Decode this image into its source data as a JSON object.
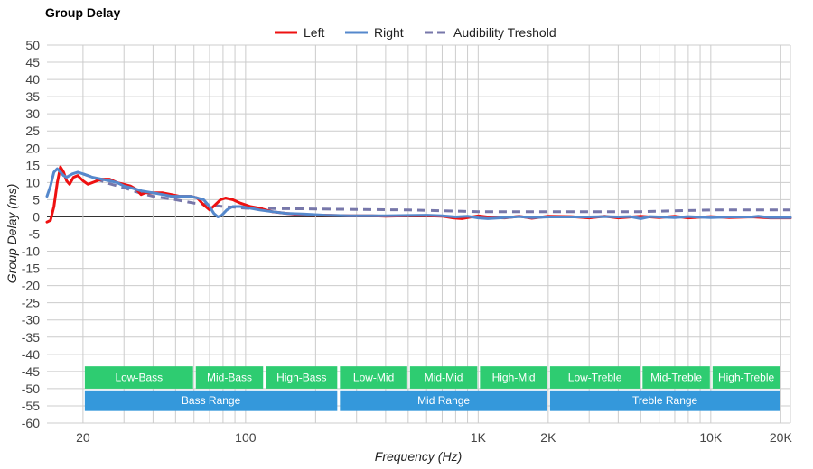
{
  "chart_data": {
    "type": "line",
    "title": "Group Delay",
    "xlabel": "Frequency (Hz)",
    "ylabel": "Group Delay (ms)",
    "xscale": "log",
    "xlim": [
      14,
      22000
    ],
    "ylim": [
      -60,
      50
    ],
    "yticks": [
      50,
      45,
      40,
      35,
      30,
      25,
      20,
      15,
      10,
      5,
      0,
      -5,
      -10,
      -15,
      -20,
      -25,
      -30,
      -35,
      -40,
      -45,
      -50,
      -55,
      -60
    ],
    "xticks": [
      {
        "value": 20,
        "label": "20"
      },
      {
        "value": 100,
        "label": "100"
      },
      {
        "value": 1000,
        "label": "1K"
      },
      {
        "value": 2000,
        "label": "2K"
      },
      {
        "value": 10000,
        "label": "10K"
      },
      {
        "value": 20000,
        "label": "20K"
      }
    ],
    "grid": true,
    "legend_position": "top-center",
    "series": [
      {
        "name": "Left",
        "color": "#ee1111",
        "style": "solid",
        "points": [
          [
            14,
            -1.5
          ],
          [
            14.5,
            -1
          ],
          [
            15,
            3
          ],
          [
            15.5,
            10
          ],
          [
            16,
            14.5
          ],
          [
            16.5,
            13
          ],
          [
            17,
            10.5
          ],
          [
            17.5,
            9.5
          ],
          [
            18.2,
            11.5
          ],
          [
            19,
            12
          ],
          [
            20,
            10.5
          ],
          [
            21,
            9.5
          ],
          [
            22,
            10
          ],
          [
            24,
            11
          ],
          [
            26,
            11
          ],
          [
            28,
            10
          ],
          [
            30,
            9.5
          ],
          [
            32,
            9
          ],
          [
            34,
            8
          ],
          [
            35.5,
            6.5
          ],
          [
            37,
            7
          ],
          [
            40,
            7
          ],
          [
            44,
            7
          ],
          [
            48,
            6.5
          ],
          [
            52,
            6
          ],
          [
            58,
            6
          ],
          [
            62,
            5.5
          ],
          [
            66,
            3.5
          ],
          [
            70,
            2
          ],
          [
            74,
            3.5
          ],
          [
            78,
            5
          ],
          [
            82,
            5.5
          ],
          [
            88,
            5
          ],
          [
            95,
            4
          ],
          [
            105,
            3
          ],
          [
            115,
            2.5
          ],
          [
            130,
            1.5
          ],
          [
            150,
            1
          ],
          [
            180,
            0.5
          ],
          [
            220,
            0.5
          ],
          [
            280,
            0.3
          ],
          [
            350,
            0.3
          ],
          [
            400,
            0.2
          ],
          [
            500,
            0.3
          ],
          [
            600,
            0.3
          ],
          [
            700,
            0.2
          ],
          [
            780,
            -0.3
          ],
          [
            850,
            -0.5
          ],
          [
            1000,
            0.3
          ],
          [
            1150,
            -0.2
          ],
          [
            1300,
            -0.3
          ],
          [
            1500,
            0.2
          ],
          [
            1700,
            -0.4
          ],
          [
            2000,
            0.2
          ],
          [
            2500,
            0.1
          ],
          [
            3000,
            -0.3
          ],
          [
            3500,
            0.2
          ],
          [
            4000,
            -0.3
          ],
          [
            5000,
            0.2
          ],
          [
            6000,
            -0.2
          ],
          [
            7000,
            0.2
          ],
          [
            8000,
            -0.3
          ],
          [
            10000,
            0.1
          ],
          [
            12000,
            -0.2
          ],
          [
            15000,
            0
          ],
          [
            18000,
            -0.3
          ],
          [
            20000,
            -0.3
          ],
          [
            22000,
            -0.3
          ]
        ]
      },
      {
        "name": "Right",
        "color": "#5588cc",
        "style": "solid",
        "points": [
          [
            14,
            6
          ],
          [
            14.5,
            9
          ],
          [
            15,
            13
          ],
          [
            15.5,
            14
          ],
          [
            16,
            13
          ],
          [
            16.5,
            12
          ],
          [
            17,
            11.5
          ],
          [
            18,
            12.5
          ],
          [
            19,
            13
          ],
          [
            20,
            12.5
          ],
          [
            22,
            11.5
          ],
          [
            24,
            11
          ],
          [
            26,
            10.5
          ],
          [
            28,
            10
          ],
          [
            30,
            9
          ],
          [
            32,
            8.5
          ],
          [
            34,
            8
          ],
          [
            36,
            7.5
          ],
          [
            40,
            7
          ],
          [
            44,
            6.5
          ],
          [
            48,
            6
          ],
          [
            52,
            6
          ],
          [
            58,
            6
          ],
          [
            62,
            5.5
          ],
          [
            66,
            5
          ],
          [
            70,
            3
          ],
          [
            73,
            1
          ],
          [
            76,
            0
          ],
          [
            79,
            0.5
          ],
          [
            83,
            2
          ],
          [
            88,
            3
          ],
          [
            95,
            3
          ],
          [
            105,
            2.5
          ],
          [
            115,
            2
          ],
          [
            130,
            1.5
          ],
          [
            150,
            1
          ],
          [
            180,
            0.8
          ],
          [
            220,
            0.5
          ],
          [
            280,
            0.3
          ],
          [
            350,
            0.3
          ],
          [
            400,
            0.3
          ],
          [
            500,
            0.4
          ],
          [
            600,
            0.5
          ],
          [
            700,
            0.3
          ],
          [
            800,
            0
          ],
          [
            900,
            0.2
          ],
          [
            1000,
            -0.3
          ],
          [
            1100,
            -0.5
          ],
          [
            1300,
            -0.2
          ],
          [
            1500,
            0.1
          ],
          [
            1700,
            -0.2
          ],
          [
            2000,
            0
          ],
          [
            2500,
            0
          ],
          [
            3000,
            0
          ],
          [
            3500,
            0.1
          ],
          [
            4000,
            0
          ],
          [
            4500,
            0.1
          ],
          [
            5000,
            -0.5
          ],
          [
            5500,
            0.1
          ],
          [
            6000,
            0
          ],
          [
            7000,
            -0.2
          ],
          [
            8000,
            0.1
          ],
          [
            9000,
            -0.1
          ],
          [
            10000,
            -0.2
          ],
          [
            12000,
            0
          ],
          [
            15000,
            0
          ],
          [
            16000,
            0.2
          ],
          [
            18000,
            -0.2
          ],
          [
            20000,
            -0.2
          ],
          [
            22000,
            -0.2
          ]
        ]
      },
      {
        "name": "Audibility Treshold",
        "color": "#7777aa",
        "style": "dashed",
        "points": [
          [
            20,
            12.5
          ],
          [
            22,
            11.5
          ],
          [
            25,
            10
          ],
          [
            30,
            8.5
          ],
          [
            35,
            7
          ],
          [
            40,
            6
          ],
          [
            50,
            5
          ],
          [
            60,
            4
          ],
          [
            70,
            3.5
          ],
          [
            80,
            3
          ],
          [
            90,
            2.8
          ],
          [
            100,
            2.5
          ],
          [
            200,
            2.3
          ],
          [
            500,
            2
          ],
          [
            1000,
            1.5
          ],
          [
            2000,
            1.5
          ],
          [
            5000,
            1.5
          ],
          [
            10000,
            2
          ],
          [
            20000,
            2
          ],
          [
            22000,
            2
          ]
        ]
      }
    ],
    "range_bands": [
      {
        "label": "Low-Bass",
        "from": 20,
        "to": 60,
        "row": 1,
        "color": "#2ecc71"
      },
      {
        "label": "Mid-Bass",
        "from": 60,
        "to": 120,
        "row": 1,
        "color": "#2ecc71"
      },
      {
        "label": "High-Bass",
        "from": 120,
        "to": 250,
        "row": 1,
        "color": "#2ecc71"
      },
      {
        "label": "Low-Mid",
        "from": 250,
        "to": 500,
        "row": 1,
        "color": "#2ecc71"
      },
      {
        "label": "Mid-Mid",
        "from": 500,
        "to": 1000,
        "row": 1,
        "color": "#2ecc71"
      },
      {
        "label": "High-Mid",
        "from": 1000,
        "to": 2000,
        "row": 1,
        "color": "#2ecc71"
      },
      {
        "label": "Low-Treble",
        "from": 2000,
        "to": 5000,
        "row": 1,
        "color": "#2ecc71"
      },
      {
        "label": "Mid-Treble",
        "from": 5000,
        "to": 10000,
        "row": 1,
        "color": "#2ecc71"
      },
      {
        "label": "High-Treble",
        "from": 10000,
        "to": 20000,
        "row": 1,
        "color": "#2ecc71"
      },
      {
        "label": "Bass Range",
        "from": 20,
        "to": 250,
        "row": 2,
        "color": "#3498db"
      },
      {
        "label": "Mid Range",
        "from": 250,
        "to": 2000,
        "row": 2,
        "color": "#3498db"
      },
      {
        "label": "Treble Range",
        "from": 2000,
        "to": 20000,
        "row": 2,
        "color": "#3498db"
      }
    ],
    "band_rows": [
      {
        "row": 1,
        "y_top": -43.5,
        "y_bottom": -50
      },
      {
        "row": 2,
        "y_top": -50.5,
        "y_bottom": -56.5
      }
    ]
  }
}
